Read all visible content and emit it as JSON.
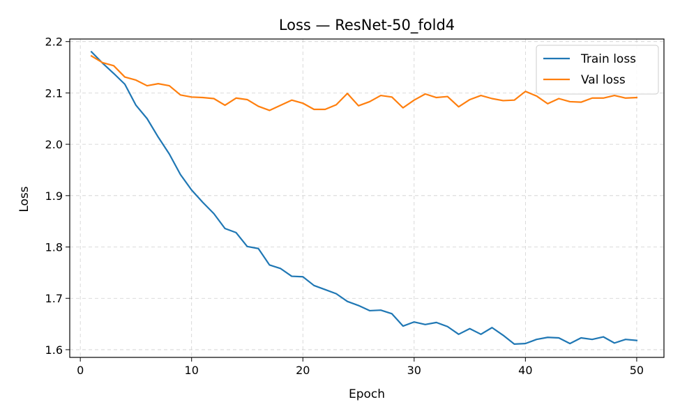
{
  "chart_data": {
    "type": "line",
    "title": "Loss — ResNet-50_fold4",
    "xlabel": "Epoch",
    "ylabel": "Loss",
    "xlim": [
      -0.95,
      52.45
    ],
    "ylim": [
      1.585,
      2.205
    ],
    "xticks": [
      0,
      10,
      20,
      30,
      40,
      50
    ],
    "yticks": [
      1.6,
      1.7,
      1.8,
      1.9,
      2.0,
      2.1,
      2.2
    ],
    "xtick_labels": [
      "0",
      "10",
      "20",
      "30",
      "40",
      "50"
    ],
    "ytick_labels": [
      "1.6",
      "1.7",
      "1.8",
      "1.9",
      "2.0",
      "2.1",
      "2.2"
    ],
    "grid": true,
    "legend_position": "top-right",
    "x": [
      1,
      2,
      3,
      4,
      5,
      6,
      7,
      8,
      9,
      10,
      11,
      12,
      13,
      14,
      15,
      16,
      17,
      18,
      19,
      20,
      21,
      22,
      23,
      24,
      25,
      26,
      27,
      28,
      29,
      30,
      31,
      32,
      33,
      34,
      35,
      36,
      37,
      38,
      39,
      40,
      41,
      42,
      43,
      44,
      45,
      46,
      47,
      48,
      49,
      50
    ],
    "series": [
      {
        "name": "Train loss",
        "color": "#1f77b4",
        "values": [
          2.18,
          2.158,
          2.138,
          2.117,
          2.076,
          2.05,
          2.014,
          1.981,
          1.941,
          1.911,
          1.887,
          1.865,
          1.836,
          1.828,
          1.801,
          1.797,
          1.765,
          1.758,
          1.743,
          1.742,
          1.725,
          1.717,
          1.709,
          1.694,
          1.686,
          1.676,
          1.677,
          1.67,
          1.646,
          1.654,
          1.649,
          1.653,
          1.645,
          1.63,
          1.641,
          1.63,
          1.643,
          1.628,
          1.611,
          1.612,
          1.62,
          1.624,
          1.623,
          1.612,
          1.623,
          1.62,
          1.625,
          1.613,
          1.62,
          1.618
        ]
      },
      {
        "name": "Val loss",
        "color": "#ff7f0e",
        "values": [
          2.172,
          2.159,
          2.153,
          2.131,
          2.125,
          2.114,
          2.118,
          2.114,
          2.096,
          2.092,
          2.091,
          2.089,
          2.076,
          2.09,
          2.087,
          2.074,
          2.066,
          2.076,
          2.086,
          2.08,
          2.068,
          2.068,
          2.077,
          2.099,
          2.075,
          2.083,
          2.095,
          2.092,
          2.071,
          2.086,
          2.098,
          2.091,
          2.093,
          2.073,
          2.087,
          2.095,
          2.089,
          2.085,
          2.086,
          2.103,
          2.094,
          2.079,
          2.089,
          2.083,
          2.082,
          2.09,
          2.09,
          2.095,
          2.09,
          2.091
        ]
      }
    ]
  }
}
